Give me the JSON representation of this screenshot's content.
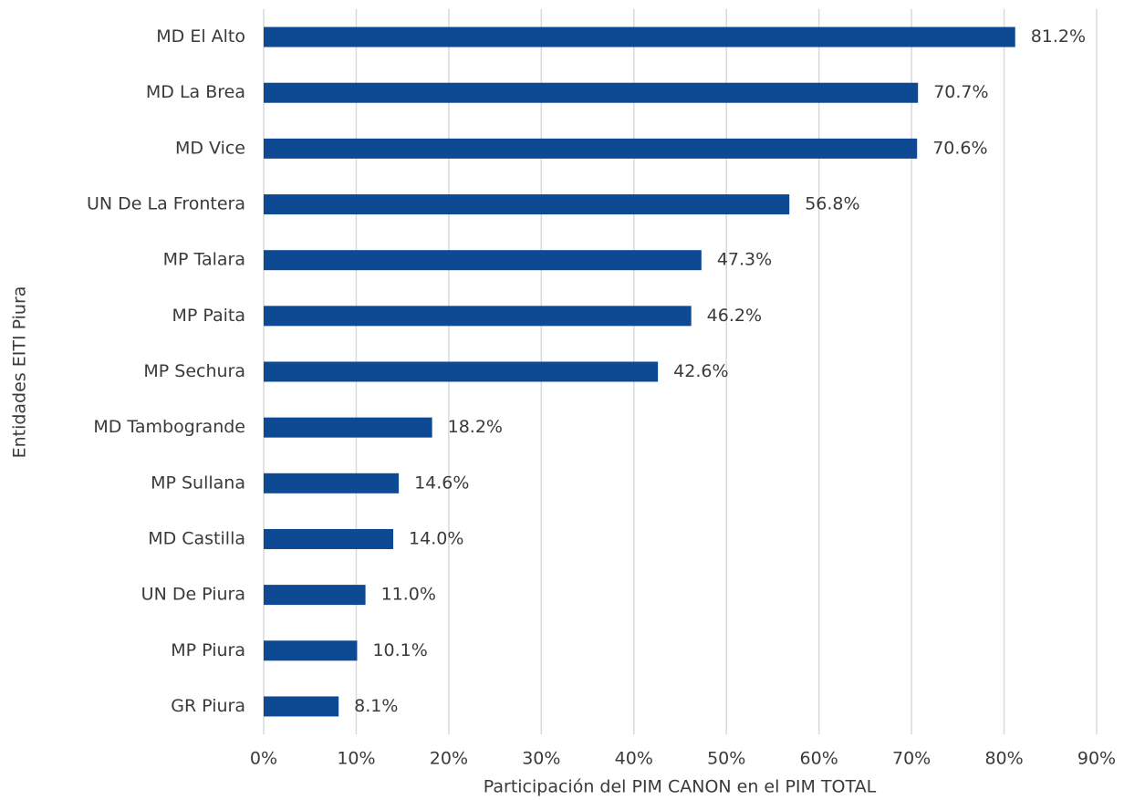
{
  "chart_data": {
    "type": "bar",
    "orientation": "horizontal",
    "xlabel": "Participación del PIM CANON en el PIM TOTAL",
    "ylabel": "Entidades EITI Piura",
    "categories": [
      "MD El Alto",
      "MD La Brea",
      "MD Vice",
      "UN De La Frontera",
      "MP Talara",
      "MP Paita",
      "MP Sechura",
      "MD Tambogrande",
      "MP Sullana",
      "MD Castilla",
      "UN De Piura",
      "MP Piura",
      "GR Piura"
    ],
    "values": [
      81.2,
      70.7,
      70.6,
      56.8,
      47.3,
      46.2,
      42.6,
      18.2,
      14.6,
      14.0,
      11.0,
      10.1,
      8.1
    ],
    "value_labels": [
      "81.2%",
      "70.7%",
      "70.6%",
      "56.8%",
      "47.3%",
      "46.2%",
      "42.6%",
      "18.2%",
      "14.6%",
      "14.0%",
      "11.0%",
      "10.1%",
      "8.1%"
    ],
    "color": "#0d4a93",
    "xlim": [
      0,
      90
    ],
    "xticks": [
      {
        "value": 0,
        "label": "0%"
      },
      {
        "value": 10,
        "label": "10%"
      },
      {
        "value": 20,
        "label": "20%"
      },
      {
        "value": 30,
        "label": "30%"
      },
      {
        "value": 40,
        "label": "40%"
      },
      {
        "value": 50,
        "label": "50%"
      },
      {
        "value": 60,
        "label": "60%"
      },
      {
        "value": 70,
        "label": "70%"
      },
      {
        "value": 80,
        "label": "80%"
      },
      {
        "value": 90,
        "label": "90%"
      }
    ],
    "grid": true
  }
}
